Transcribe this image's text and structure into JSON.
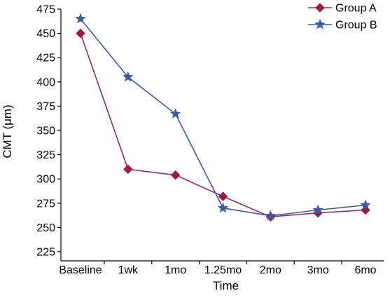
{
  "chart_data": {
    "type": "line",
    "title": "",
    "xlabel": "Time",
    "ylabel": "CMT (μm)",
    "categories": [
      "Baseline",
      "1wk",
      "1mo",
      "1.25mo",
      "2mo",
      "3mo",
      "6mo"
    ],
    "ylim": [
      225,
      475
    ],
    "yticks": [
      225,
      250,
      275,
      300,
      325,
      350,
      375,
      400,
      425,
      450,
      475
    ],
    "grid": false,
    "legend_position": "top-right",
    "series": [
      {
        "name": "Group A",
        "values": [
          450,
          310,
          304,
          282,
          261,
          265,
          268
        ],
        "color": "#a0174a",
        "line_color": "#8b2a7a",
        "marker": "diamond"
      },
      {
        "name": "Group B",
        "values": [
          465,
          405,
          367,
          270,
          262,
          268,
          273
        ],
        "color": "#3b5ba5",
        "line_color": "#3b5ba5",
        "marker": "star"
      }
    ]
  }
}
